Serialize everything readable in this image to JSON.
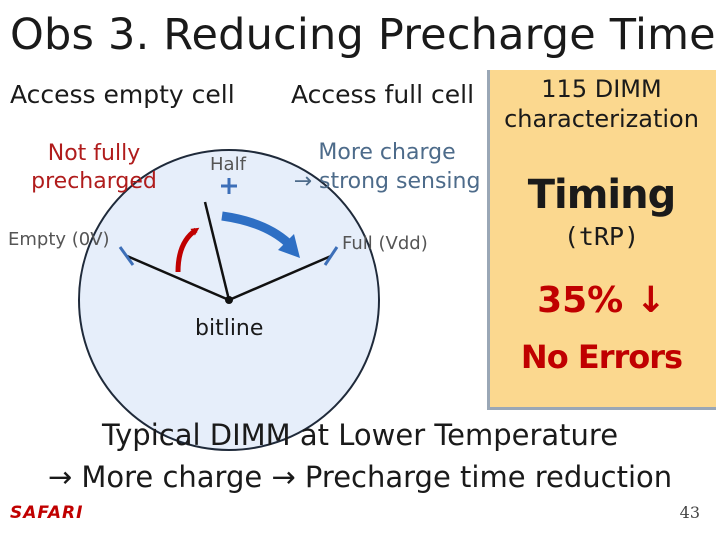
{
  "title": "Obs 3. Reducing Precharge Time",
  "headings": {
    "left": "Access empty cell",
    "right": "Access full cell"
  },
  "labels": {
    "not_fully_line1": "Not fully",
    "not_fully_line2": "precharged",
    "half": "Half",
    "more_charge_line1": "More charge",
    "more_charge_line2": "→ strong sensing",
    "empty": "Empty (0V)",
    "full": "Full (Vdd)",
    "bitline": "bitline"
  },
  "panel": {
    "title_line1": "115 DIMM",
    "title_line2": "characterization",
    "timing": "Timing",
    "parameter": "(tRP)",
    "reduction": "35% ↓",
    "errors": "No Errors"
  },
  "conclusion": {
    "line1": "Typical DIMM at Lower Temperature",
    "line2": "→ More charge → Precharge time reduction"
  },
  "footer": {
    "logo": "SAFARI",
    "page": "43"
  },
  "colors": {
    "panel_fill": "#fbd88f",
    "red_arrow": "#c00000",
    "blue_arrow": "#2e6fc4",
    "gauge_fill": "#e6eefa"
  }
}
